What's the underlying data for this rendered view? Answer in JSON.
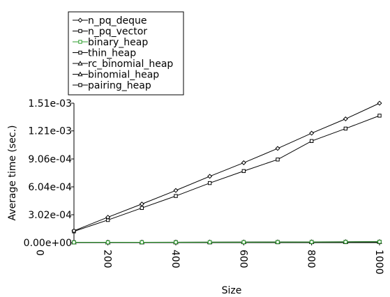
{
  "chart_data": {
    "type": "line",
    "xlabel": "Size",
    "ylabel": "Average time (sec.)",
    "xlim": [
      100,
      1000
    ],
    "ylim": [
      0,
      0.00151
    ],
    "xticks": [
      0,
      200,
      400,
      600,
      800,
      1000
    ],
    "xtick_labels": [
      "0",
      "200",
      "400",
      "600",
      "800",
      "1000"
    ],
    "yticks": [
      0,
      0.000302,
      0.000604,
      0.000906,
      0.00121,
      0.00151
    ],
    "ytick_labels": [
      "0.00e+00",
      "3.02e-04",
      "6.04e-04",
      "9.06e-04",
      "1.21e-03",
      "1.51e-03"
    ],
    "grid": false,
    "legend_position": "top-left (above plot)",
    "x": [
      100,
      200,
      300,
      400,
      500,
      600,
      700,
      800,
      900,
      1000
    ],
    "series": [
      {
        "name": "n_pq_deque",
        "color": "#000000",
        "marker": "diamond",
        "values": [
          0.000128,
          0.000275,
          0.000418,
          0.000565,
          0.000718,
          0.000865,
          0.00102,
          0.001185,
          0.00134,
          0.00151
        ]
      },
      {
        "name": "n_pq_vector",
        "color": "#000000",
        "marker": "square",
        "values": [
          0.000122,
          0.000245,
          0.000375,
          0.000505,
          0.000645,
          0.000775,
          0.0009,
          0.0011,
          0.001235,
          0.001375
        ]
      },
      {
        "name": "binary_heap",
        "color": "#2e9e2e",
        "marker": "square",
        "values": [
          3e-06,
          3e-06,
          4e-06,
          4e-06,
          5e-06,
          5e-06,
          6e-06,
          7e-06,
          8e-06,
          9e-06
        ]
      },
      {
        "name": "thin_heap",
        "color": "#000000",
        "marker": "square",
        "values": [
          4e-06,
          4e-06,
          4e-06,
          5e-06,
          5e-06,
          6e-06,
          7e-06,
          8e-06,
          9e-06,
          1e-05
        ]
      },
      {
        "name": "rc_binomial_heap",
        "color": "#000000",
        "marker": "triangle",
        "values": [
          3e-06,
          3e-06,
          4e-06,
          4e-06,
          5e-06,
          5e-06,
          6e-06,
          7e-06,
          8e-06,
          9e-06
        ]
      },
      {
        "name": "binomial_heap",
        "color": "#000000",
        "marker": "triangle",
        "values": [
          3e-06,
          3e-06,
          3e-06,
          4e-06,
          4e-06,
          5e-06,
          5e-06,
          6e-06,
          7e-06,
          8e-06
        ]
      },
      {
        "name": "pairing_heap",
        "color": "#000000",
        "marker": "square",
        "values": [
          2e-06,
          2e-06,
          3e-06,
          3e-06,
          3e-06,
          4e-06,
          4e-06,
          5e-06,
          5e-06,
          6e-06
        ]
      }
    ]
  }
}
